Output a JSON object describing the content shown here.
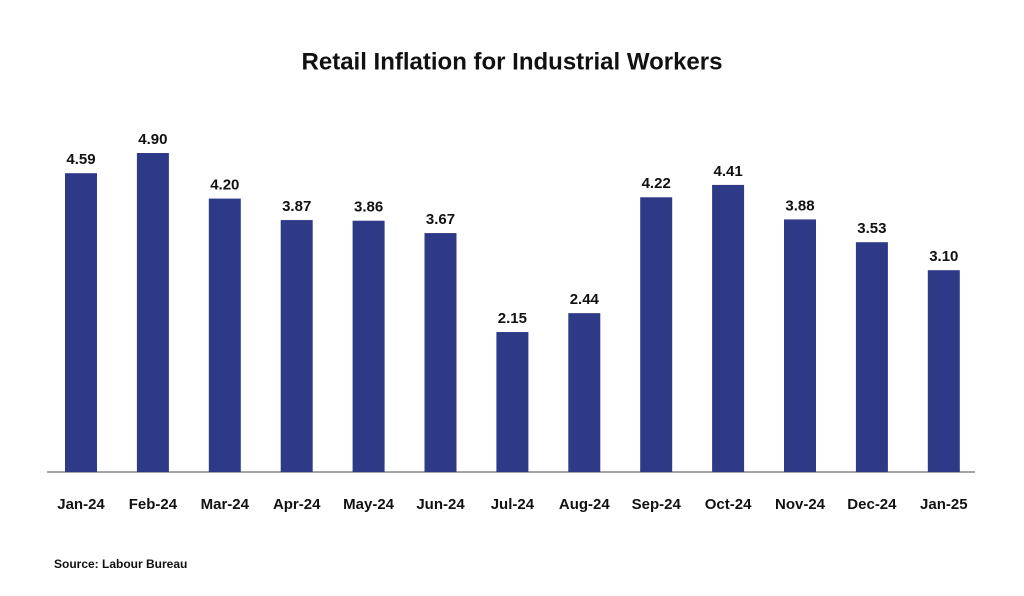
{
  "chart_data": {
    "type": "bar",
    "title": "Retail Inflation for Industrial Workers",
    "categories": [
      "Jan-24",
      "Feb-24",
      "Mar-24",
      "Apr-24",
      "May-24",
      "Jun-24",
      "Jul-24",
      "Aug-24",
      "Sep-24",
      "Oct-24",
      "Nov-24",
      "Dec-24",
      "Jan-25"
    ],
    "values": [
      4.59,
      4.9,
      4.2,
      3.87,
      3.86,
      3.67,
      2.15,
      2.44,
      4.22,
      4.41,
      3.88,
      3.53,
      3.1
    ],
    "value_labels": [
      "4.59",
      "4.90",
      "4.20",
      "3.87",
      "3.86",
      "3.67",
      "2.15",
      "2.44",
      "4.22",
      "4.41",
      "3.88",
      "3.53",
      "3.10"
    ],
    "color": "#2e3a87",
    "source": "Source: Labour Bureau"
  }
}
